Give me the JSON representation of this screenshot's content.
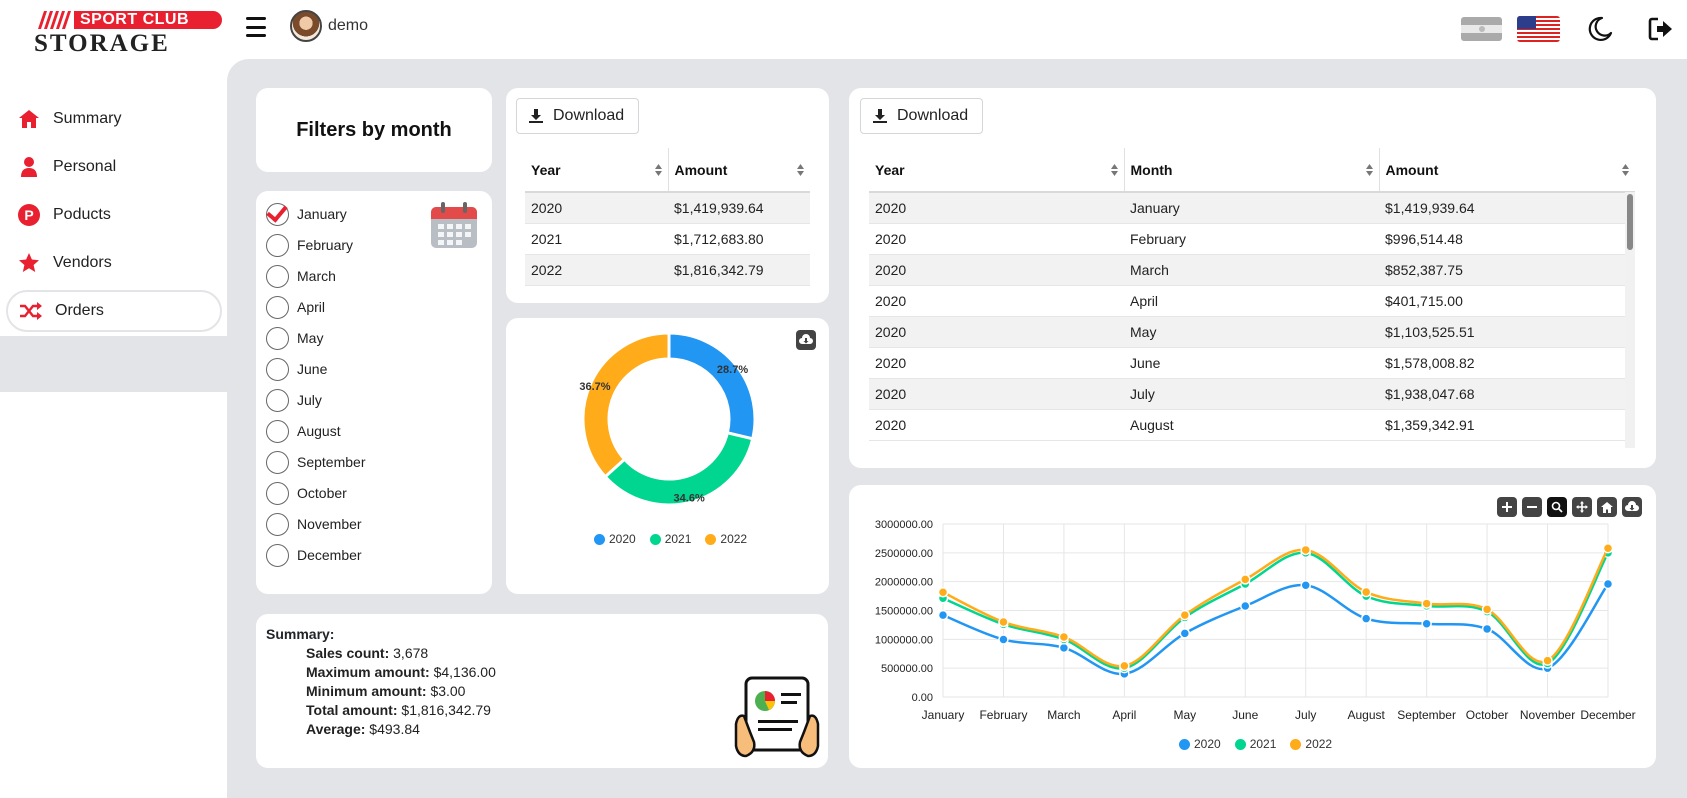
{
  "logo": {
    "banner": "SPORT CLUB",
    "name": "STORAGE"
  },
  "user": {
    "name": "demo"
  },
  "sidebar": {
    "items": [
      {
        "label": "Summary",
        "icon": "home-icon"
      },
      {
        "label": "Personal",
        "icon": "person-icon"
      },
      {
        "label": "Poducts",
        "icon": "product-p-icon"
      },
      {
        "label": "Vendors",
        "icon": "star-icon"
      },
      {
        "label": "Orders",
        "icon": "shuffle-icon",
        "active": true
      }
    ]
  },
  "filters": {
    "title": "Filters by month",
    "months": [
      "January",
      "February",
      "March",
      "April",
      "May",
      "June",
      "July",
      "August",
      "September",
      "October",
      "November",
      "December"
    ],
    "selected": "January"
  },
  "download_label": "Download",
  "year_table": {
    "headers": [
      "Year",
      "Amount"
    ],
    "rows": [
      [
        "2020",
        "$1,419,939.64"
      ],
      [
        "2021",
        "$1,712,683.80"
      ],
      [
        "2022",
        "$1,816,342.79"
      ]
    ]
  },
  "month_table": {
    "headers": [
      "Year",
      "Month",
      "Amount"
    ],
    "rows": [
      [
        "2020",
        "January",
        "$1,419,939.64"
      ],
      [
        "2020",
        "February",
        "$996,514.48"
      ],
      [
        "2020",
        "March",
        "$852,387.75"
      ],
      [
        "2020",
        "April",
        "$401,715.00"
      ],
      [
        "2020",
        "May",
        "$1,103,525.51"
      ],
      [
        "2020",
        "June",
        "$1,578,008.82"
      ],
      [
        "2020",
        "July",
        "$1,938,047.68"
      ],
      [
        "2020",
        "August",
        "$1,359,342.91"
      ]
    ]
  },
  "summary": {
    "title": "Summary:",
    "sales_count_label": "Sales count:",
    "sales_count": "3,678",
    "max_label": "Maximum amount:",
    "max": "$4,136.00",
    "min_label": "Minimum amount:",
    "min": "$3.00",
    "total_label": "Total amount:",
    "total": "$1,816,342.79",
    "avg_label": "Average:",
    "avg": "$493.84"
  },
  "colors": {
    "2020": "#2196f3",
    "2021": "#00d68f",
    "2022": "#ffab1a",
    "accent": "#e8202f"
  },
  "chart_data": [
    {
      "type": "pie",
      "variant": "donut",
      "categories": [
        "2020",
        "2021",
        "2022"
      ],
      "values": [
        28.7,
        34.6,
        36.7
      ],
      "labels": [
        "28.7%",
        "34.6%",
        "36.7%"
      ],
      "legend": "bottom"
    },
    {
      "type": "line",
      "smooth": true,
      "categories": [
        "January",
        "February",
        "March",
        "April",
        "May",
        "June",
        "July",
        "August",
        "September",
        "October",
        "November",
        "December"
      ],
      "series": [
        {
          "name": "2020",
          "values": [
            1419939.64,
            996514.48,
            852387.75,
            401715.0,
            1103525.51,
            1578008.82,
            1938047.68,
            1359342.91,
            1270000,
            1180000,
            500000,
            1960000
          ]
        },
        {
          "name": "2021",
          "values": [
            1712683.8,
            1260000,
            1000000,
            500000,
            1380000,
            1960000,
            2500000,
            1750000,
            1580000,
            1480000,
            580000,
            2500000
          ]
        },
        {
          "name": "2022",
          "values": [
            1816342.79,
            1300000,
            1040000,
            540000,
            1420000,
            2040000,
            2550000,
            1820000,
            1620000,
            1520000,
            630000,
            2580000
          ]
        }
      ],
      "yticks": [
        "0.00",
        "500000.00",
        "1000000.00",
        "1500000.00",
        "2000000.00",
        "2500000.00",
        "3000000.00"
      ],
      "ylim": [
        0,
        3000000
      ],
      "grid": true,
      "legend": "bottom"
    }
  ]
}
